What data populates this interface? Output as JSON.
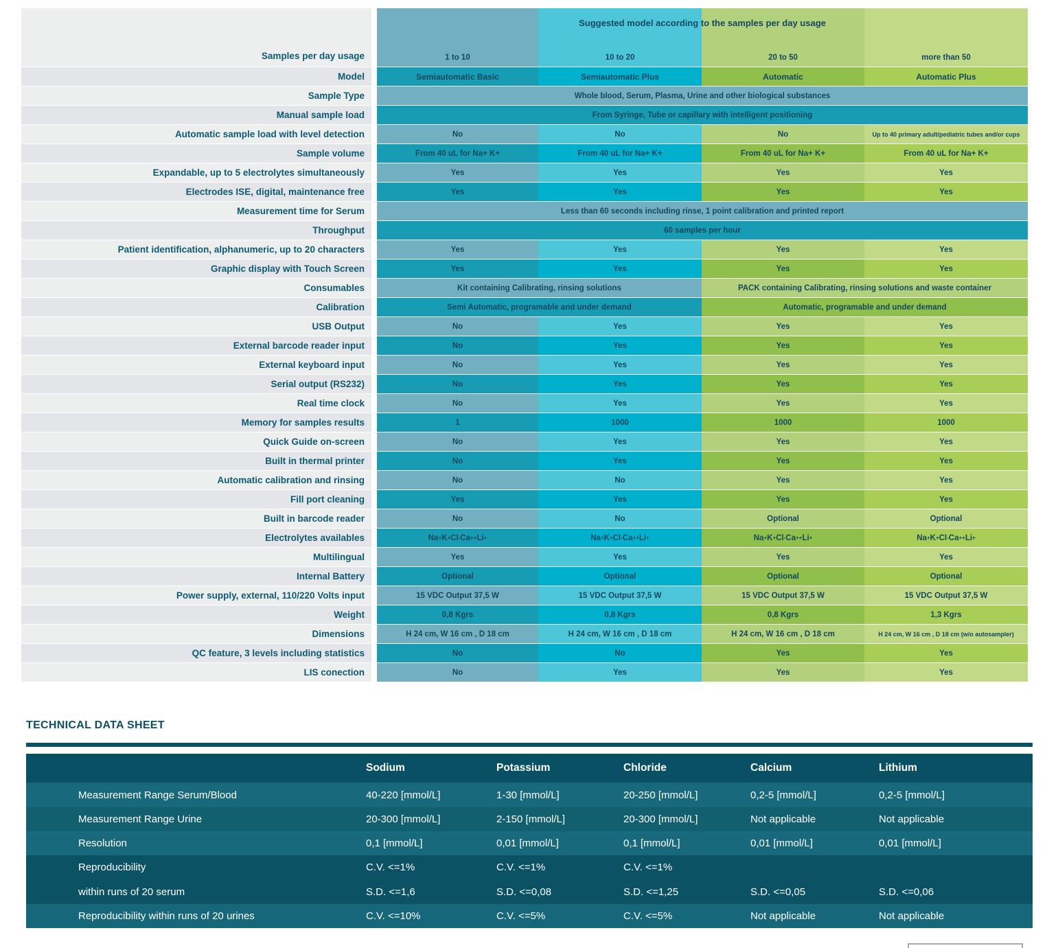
{
  "comparison_table": {
    "header": {
      "title": "Suggested model according to the samples per day usage",
      "samples_label": "Samples per day usage",
      "usage_values": [
        "1 to 10",
        "10 to 20",
        "20 to 50",
        "more than 50"
      ]
    },
    "rows": [
      {
        "label": "Model",
        "bold": true,
        "cells": [
          {
            "t": "Semiautomatic Basic"
          },
          {
            "t": "Semiautomatic Plus"
          },
          {
            "t": "Automatic"
          },
          {
            "t": "Automatic Plus"
          }
        ]
      },
      {
        "label": "Sample Type",
        "cells": [
          {
            "t": "Whole blood, Serum, Plasma, Urine and other biological substances",
            "s": 4
          }
        ]
      },
      {
        "label": "Manual sample load",
        "cells": [
          {
            "t": "From Syringe, Tube or capillary with intelligent positioning",
            "s": 4
          }
        ]
      },
      {
        "label": "Automatic sample load with level detection",
        "cells": [
          {
            "t": "No"
          },
          {
            "t": "No"
          },
          {
            "t": "No"
          },
          {
            "t": "Up to 40 primary adult/pediatric tubes and/or cups",
            "small": true
          }
        ]
      },
      {
        "label": "Sample volume",
        "cells": [
          {
            "t": "From 40 uL for Na+ K+"
          },
          {
            "t": "From 40 uL for Na+ K+"
          },
          {
            "t": "From 40 uL for Na+ K+"
          },
          {
            "t": "From 40 uL for Na+ K+"
          }
        ]
      },
      {
        "label": "Expandable, up to 5 electrolytes simultaneously",
        "cells": [
          {
            "t": "Yes"
          },
          {
            "t": "Yes"
          },
          {
            "t": "Yes"
          },
          {
            "t": "Yes"
          }
        ]
      },
      {
        "label": "Electrodes ISE, digital, maintenance free",
        "cells": [
          {
            "t": "Yes"
          },
          {
            "t": "Yes"
          },
          {
            "t": "Yes"
          },
          {
            "t": "Yes"
          }
        ]
      },
      {
        "label": "Measurement time for Serum",
        "cells": [
          {
            "t": "Less than 60 seconds including rinse, 1 point calibration and printed report",
            "s": 4
          }
        ]
      },
      {
        "label": "Throughput",
        "cells": [
          {
            "t": "60 samples per hour",
            "s": 4
          }
        ]
      },
      {
        "label": "Patient identification, alphanumeric, up to 20 characters",
        "cells": [
          {
            "t": "Yes"
          },
          {
            "t": "Yes"
          },
          {
            "t": "Yes"
          },
          {
            "t": "Yes"
          }
        ]
      },
      {
        "label": "Graphic display with Touch Screen",
        "cells": [
          {
            "t": "Yes"
          },
          {
            "t": "Yes"
          },
          {
            "t": "Yes"
          },
          {
            "t": "Yes"
          }
        ]
      },
      {
        "label": "Consumables",
        "cells": [
          {
            "t": "Kit containing Calibrating, rinsing solutions",
            "s": 2
          },
          {
            "t": "PACK containing Calibrating, rinsing solutions and waste container",
            "s": 2
          }
        ]
      },
      {
        "label": "Calibration",
        "cells": [
          {
            "t": "Semi Automatic, programable and under demand",
            "s": 2
          },
          {
            "t": "Automatic, programable and under demand",
            "s": 2
          }
        ]
      },
      {
        "label": "USB Output",
        "cells": [
          {
            "t": "No"
          },
          {
            "t": "Yes"
          },
          {
            "t": "Yes"
          },
          {
            "t": "Yes"
          }
        ]
      },
      {
        "label": "External barcode reader input",
        "cells": [
          {
            "t": "No"
          },
          {
            "t": "Yes"
          },
          {
            "t": "Yes"
          },
          {
            "t": "Yes"
          }
        ]
      },
      {
        "label": "External keyboard input",
        "cells": [
          {
            "t": "No"
          },
          {
            "t": "Yes"
          },
          {
            "t": "Yes"
          },
          {
            "t": "Yes"
          }
        ]
      },
      {
        "label": "Serial output (RS232)",
        "cells": [
          {
            "t": "No"
          },
          {
            "t": "Yes"
          },
          {
            "t": "Yes"
          },
          {
            "t": "Yes"
          }
        ]
      },
      {
        "label": "Real time clock",
        "cells": [
          {
            "t": "No"
          },
          {
            "t": "Yes"
          },
          {
            "t": "Yes"
          },
          {
            "t": "Yes"
          }
        ]
      },
      {
        "label": "Memory for samples  results",
        "cells": [
          {
            "t": "1"
          },
          {
            "t": "1000"
          },
          {
            "t": "1000"
          },
          {
            "t": "1000"
          }
        ]
      },
      {
        "label": "Quick Guide on-screen",
        "cells": [
          {
            "t": "No"
          },
          {
            "t": "Yes"
          },
          {
            "t": "Yes"
          },
          {
            "t": "Yes"
          }
        ]
      },
      {
        "label": "Built in thermal printer",
        "cells": [
          {
            "t": "No"
          },
          {
            "t": "Yes"
          },
          {
            "t": "Yes"
          },
          {
            "t": "Yes"
          }
        ]
      },
      {
        "label": "Automatic calibration and rinsing",
        "cells": [
          {
            "t": "No"
          },
          {
            "t": "No"
          },
          {
            "t": "Yes"
          },
          {
            "t": "Yes"
          }
        ]
      },
      {
        "label": "Fill port cleaning",
        "cells": [
          {
            "t": "Yes"
          },
          {
            "t": "Yes"
          },
          {
            "t": "Yes"
          },
          {
            "t": "Yes"
          }
        ]
      },
      {
        "label": "Built in barcode reader",
        "cells": [
          {
            "t": "No"
          },
          {
            "t": "No"
          },
          {
            "t": "Optional"
          },
          {
            "t": "Optional"
          }
        ]
      },
      {
        "label": "Electrolytes availables",
        "cells": [
          {
            "t": "Na^+^ K^+^Cl^-^ Ca^++^ Li^+^"
          },
          {
            "t": "Na^+^ K^+^Cl^-^ Ca^++^ Li^+^"
          },
          {
            "t": "Na^+^ K^+^Cl^-^ Ca^++^ Li^+^"
          },
          {
            "t": "Na^+^ K^+^Cl^-^ Ca^++^ Li^+^"
          }
        ]
      },
      {
        "label": "Multilingual",
        "cells": [
          {
            "t": "Yes"
          },
          {
            "t": "Yes"
          },
          {
            "t": "Yes"
          },
          {
            "t": "Yes"
          }
        ]
      },
      {
        "label": "Internal Battery",
        "cells": [
          {
            "t": "Optional"
          },
          {
            "t": "Optional"
          },
          {
            "t": "Optional"
          },
          {
            "t": "Optional"
          }
        ]
      },
      {
        "label": "Power supply, external, 110/220 Volts input",
        "cells": [
          {
            "t": "15 VDC Output 37,5  W"
          },
          {
            "t": "15 VDC Output 37,5  W"
          },
          {
            "t": "15 VDC Output 37,5  W"
          },
          {
            "t": "15 VDC Output 37,5  W"
          }
        ]
      },
      {
        "label": "Weight",
        "cells": [
          {
            "t": "0,8 Kgrs"
          },
          {
            "t": "0,8 Kgrs"
          },
          {
            "t": "0,8 Kgrs"
          },
          {
            "t": "1,3 Kgrs"
          }
        ]
      },
      {
        "label": "Dimensions",
        "cells": [
          {
            "t": "H 24 cm, W 16 cm , D 18 cm"
          },
          {
            "t": "H 24 cm, W 16 cm , D 18 cm"
          },
          {
            "t": "H 24 cm, W 16 cm , D 18 cm"
          },
          {
            "t": "H 24 cm, W 16 cm , D 18 cm (w/o autosampler)",
            "small": true
          }
        ]
      },
      {
        "label": "QC feature, 3 levels including statistics",
        "cells": [
          {
            "t": "No"
          },
          {
            "t": "No"
          },
          {
            "t": "Yes"
          },
          {
            "t": "Yes"
          }
        ]
      },
      {
        "label": "LIS conection",
        "cells": [
          {
            "t": "No"
          },
          {
            "t": "Yes"
          },
          {
            "t": "Yes"
          },
          {
            "t": "Yes"
          }
        ]
      }
    ]
  },
  "technical_sheet": {
    "section_title": "TECHNICAL DATA SHEET",
    "columns": [
      "",
      "Sodium",
      "Potassium",
      "Chloride",
      "Calcium",
      "Lithium"
    ],
    "rows": [
      {
        "label": "Measurement Range Serum/Blood",
        "values": [
          "40-220 [mmol/L]",
          "1-30 [mmol/L]",
          "20-250 [mmol/L]",
          "0,2-5 [mmol/L]",
          "0,2-5 [mmol/L]"
        ]
      },
      {
        "label": "Measurement Range Urine",
        "values": [
          "20-300 [mmol/L]",
          "2-150 [mmol/L]",
          "20-300 [mmol/L]",
          "Not applicable",
          "Not applicable"
        ]
      },
      {
        "label": "Resolution",
        "values": [
          "0,1 [mmol/L]",
          "0,01 [mmol/L]",
          "0,1 [mmol/L]",
          "0,01 [mmol/L]",
          "0,01 [mmol/L]"
        ]
      },
      {
        "label": "Reproducibility",
        "values": [
          "C.V. <=1%",
          "C.V. <=1%",
          "C.V. <=1%",
          "",
          ""
        ]
      },
      {
        "label": "within runs of 20 serum",
        "values": [
          "S.D. <=1,6",
          "S.D. <=0,08",
          "S.D. <=1,25",
          "S.D. <=0,05",
          "S.D. <=0,06"
        ]
      },
      {
        "label": "Reproducibility within runs of 20 urines",
        "values": [
          "C.V. <=10%",
          "C.V. <=5%",
          "C.V. <=5%",
          "Not applicable",
          "Not applicable"
        ]
      }
    ]
  },
  "colors": {
    "col1_light": "#72b0c1",
    "col1_dark": "#179cb3",
    "col2_light": "#4dc6da",
    "col2_dark": "#01b0cd",
    "col3_light": "#b3d07d",
    "col3_dark": "#90c04b",
    "col4_light": "#c2da88",
    "col4_dark": "#a8ce57",
    "label_light": "#edeeee",
    "label_dark": "#e3e5e8",
    "cell_text": "#13485f",
    "label_text": "#0e5a72",
    "accent": "#0c5064",
    "tech_row_colors": [
      "#0a5065",
      "#19697c",
      "#12606f",
      "#19697c",
      "#0b5265",
      "#0b5265",
      "#17677a"
    ]
  }
}
